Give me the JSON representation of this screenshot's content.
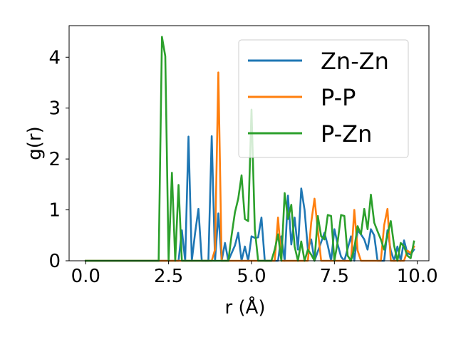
{
  "chart_data": {
    "type": "line",
    "xlabel": "r (Å)",
    "ylabel": "g(r)",
    "xlim": [
      -0.5,
      10.35
    ],
    "ylim": [
      0,
      4.62
    ],
    "xticks": [
      0.0,
      2.5,
      5.0,
      7.5,
      10.0
    ],
    "xtick_labels": [
      "0.0",
      "2.5",
      "5.0",
      "7.5",
      "10.0"
    ],
    "yticks": [
      0,
      1,
      2,
      3,
      4
    ],
    "ytick_labels": [
      "0",
      "1",
      "2",
      "3",
      "4"
    ],
    "legend_position": "top-right",
    "grid": false,
    "series": [
      {
        "name": "Zn-Zn",
        "color": "#1f77b4",
        "points": [
          [
            0.0,
            0
          ],
          [
            2.2,
            0
          ],
          [
            2.8,
            0
          ],
          [
            2.9,
            0.6
          ],
          [
            3.0,
            0
          ],
          [
            3.1,
            2.44
          ],
          [
            3.2,
            0
          ],
          [
            3.3,
            0.55
          ],
          [
            3.4,
            1.02
          ],
          [
            3.5,
            0
          ],
          [
            3.7,
            0
          ],
          [
            3.8,
            2.45
          ],
          [
            3.9,
            0
          ],
          [
            4.0,
            0.93
          ],
          [
            4.1,
            0
          ],
          [
            4.2,
            0.35
          ],
          [
            4.3,
            0
          ],
          [
            4.5,
            0.3
          ],
          [
            4.6,
            0.55
          ],
          [
            4.7,
            0
          ],
          [
            4.8,
            0.28
          ],
          [
            4.9,
            0
          ],
          [
            5.0,
            0.48
          ],
          [
            5.1,
            0.45
          ],
          [
            5.2,
            0.46
          ],
          [
            5.3,
            0.85
          ],
          [
            5.4,
            0
          ],
          [
            5.8,
            0
          ],
          [
            5.9,
            0.48
          ],
          [
            6.0,
            0
          ],
          [
            6.1,
            1.28
          ],
          [
            6.2,
            0.32
          ],
          [
            6.3,
            0.85
          ],
          [
            6.4,
            0.22
          ],
          [
            6.5,
            1.42
          ],
          [
            6.6,
            1.0
          ],
          [
            6.7,
            0.22
          ],
          [
            6.8,
            0.42
          ],
          [
            6.9,
            0
          ],
          [
            7.2,
            0.55
          ],
          [
            7.3,
            0.3
          ],
          [
            7.4,
            0
          ],
          [
            7.5,
            0.62
          ],
          [
            7.6,
            0.32
          ],
          [
            7.7,
            0.08
          ],
          [
            7.8,
            0
          ],
          [
            8.0,
            0.48
          ],
          [
            8.1,
            0
          ],
          [
            8.2,
            0.6
          ],
          [
            8.3,
            0.52
          ],
          [
            8.4,
            0.42
          ],
          [
            8.5,
            0.22
          ],
          [
            8.6,
            0.62
          ],
          [
            8.7,
            0.5
          ],
          [
            8.8,
            0
          ],
          [
            9.0,
            0
          ],
          [
            9.1,
            0.6
          ],
          [
            9.2,
            0.2
          ],
          [
            9.3,
            0
          ],
          [
            9.4,
            0.28
          ],
          [
            9.5,
            0
          ],
          [
            9.6,
            0.4
          ],
          [
            9.7,
            0.15
          ],
          [
            9.8,
            0.12
          ],
          [
            9.9,
            0.22
          ]
        ]
      },
      {
        "name": "P-P",
        "color": "#ff7f0e",
        "points": [
          [
            0.0,
            0
          ],
          [
            3.8,
            0
          ],
          [
            3.9,
            0.22
          ],
          [
            4.0,
            3.7
          ],
          [
            4.1,
            0
          ],
          [
            5.7,
            0
          ],
          [
            5.8,
            0.85
          ],
          [
            5.9,
            0
          ],
          [
            6.7,
            0
          ],
          [
            6.8,
            0.75
          ],
          [
            6.9,
            1.22
          ],
          [
            7.0,
            0.6
          ],
          [
            7.1,
            0
          ],
          [
            8.0,
            0
          ],
          [
            8.1,
            1.0
          ],
          [
            8.2,
            0.2
          ],
          [
            8.3,
            0
          ],
          [
            8.9,
            0
          ],
          [
            9.0,
            0.7
          ],
          [
            9.1,
            1.02
          ],
          [
            9.2,
            0
          ],
          [
            9.6,
            0
          ],
          [
            9.7,
            0.2
          ],
          [
            9.8,
            0.15
          ],
          [
            9.9,
            0.28
          ]
        ]
      },
      {
        "name": "P-Zn",
        "color": "#2ca02c",
        "points": [
          [
            0.0,
            0
          ],
          [
            2.2,
            0
          ],
          [
            2.3,
            4.4
          ],
          [
            2.4,
            4.02
          ],
          [
            2.5,
            0
          ],
          [
            2.6,
            1.73
          ],
          [
            2.7,
            0
          ],
          [
            2.8,
            1.49
          ],
          [
            2.9,
            0
          ],
          [
            4.3,
            0
          ],
          [
            4.4,
            0.5
          ],
          [
            4.5,
            0.95
          ],
          [
            4.6,
            1.22
          ],
          [
            4.7,
            1.68
          ],
          [
            4.8,
            0.82
          ],
          [
            4.9,
            0.78
          ],
          [
            5.0,
            2.97
          ],
          [
            5.1,
            0.62
          ],
          [
            5.2,
            0
          ],
          [
            5.6,
            0
          ],
          [
            5.7,
            0.22
          ],
          [
            5.8,
            0.52
          ],
          [
            5.9,
            0
          ],
          [
            6.0,
            1.33
          ],
          [
            6.1,
            0.82
          ],
          [
            6.2,
            1.1
          ],
          [
            6.3,
            0.28
          ],
          [
            6.4,
            0
          ],
          [
            6.5,
            0.38
          ],
          [
            6.6,
            0
          ],
          [
            6.7,
            0.22
          ],
          [
            6.8,
            0.12
          ],
          [
            6.9,
            0
          ],
          [
            7.0,
            0.88
          ],
          [
            7.1,
            0.48
          ],
          [
            7.2,
            0.42
          ],
          [
            7.3,
            0.9
          ],
          [
            7.4,
            0.88
          ],
          [
            7.5,
            0
          ],
          [
            7.6,
            0.38
          ],
          [
            7.7,
            0.9
          ],
          [
            7.8,
            0.88
          ],
          [
            7.9,
            0.1
          ],
          [
            8.0,
            0
          ],
          [
            8.1,
            0.25
          ],
          [
            8.2,
            0.68
          ],
          [
            8.3,
            0.52
          ],
          [
            8.4,
            1.02
          ],
          [
            8.5,
            0.62
          ],
          [
            8.6,
            1.3
          ],
          [
            8.7,
            0.75
          ],
          [
            8.8,
            0.58
          ],
          [
            8.9,
            0.42
          ],
          [
            9.0,
            0.22
          ],
          [
            9.1,
            0.52
          ],
          [
            9.2,
            0.78
          ],
          [
            9.3,
            0.3
          ],
          [
            9.4,
            0
          ],
          [
            9.5,
            0.35
          ],
          [
            9.6,
            0.28
          ],
          [
            9.7,
            0.1
          ],
          [
            9.8,
            0.05
          ],
          [
            9.9,
            0.38
          ]
        ]
      }
    ]
  }
}
